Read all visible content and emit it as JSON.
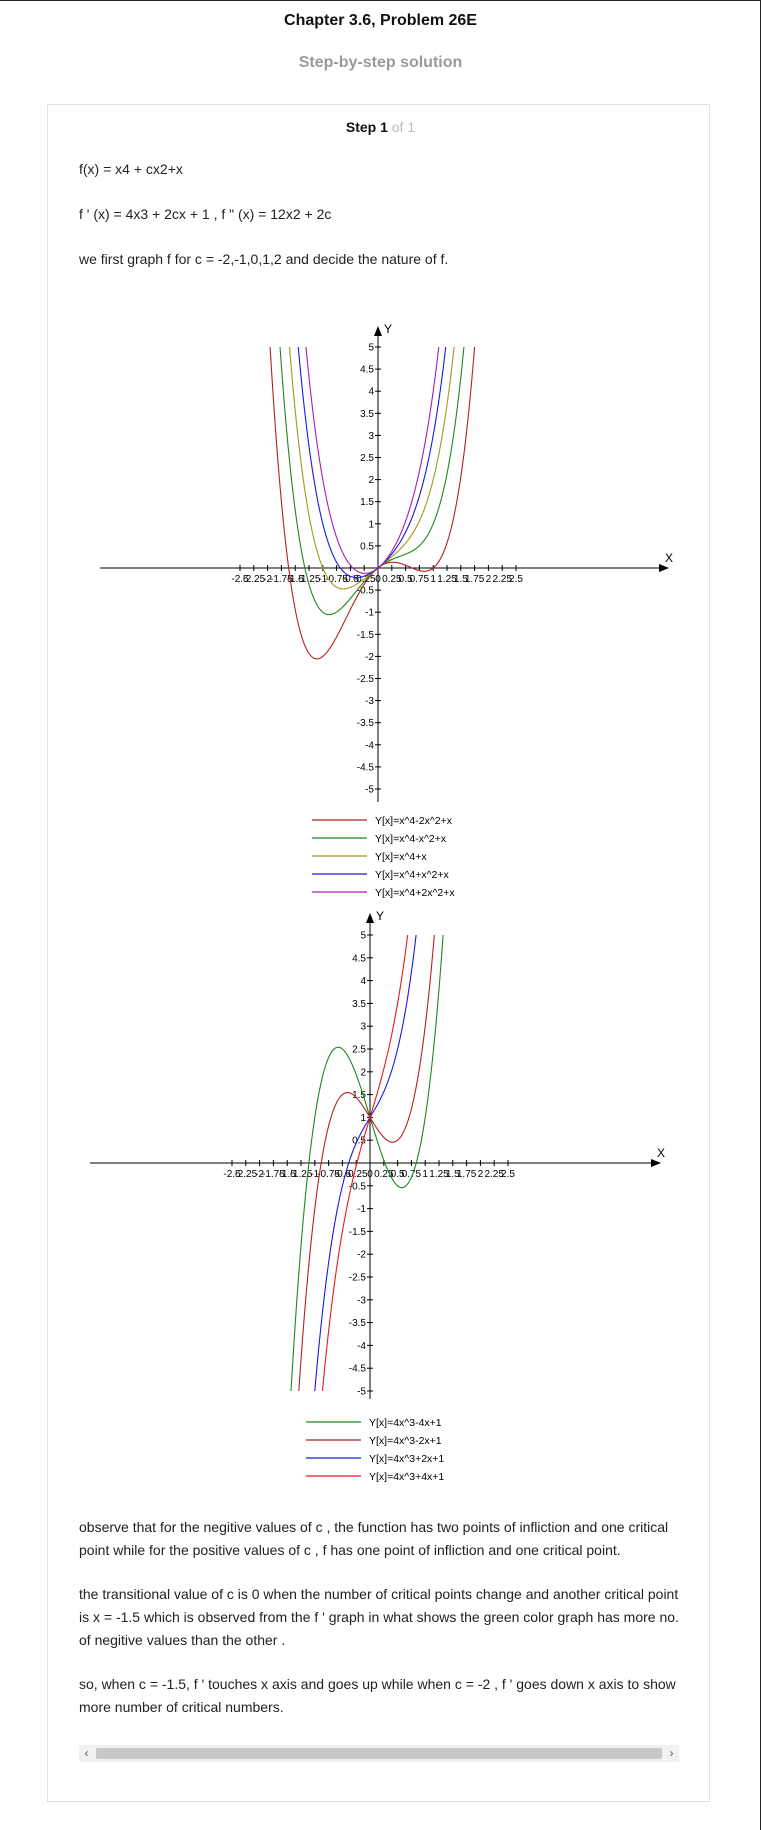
{
  "header": {
    "title": "Chapter 3.6, Problem 26E",
    "subtitle": "Step-by-step solution"
  },
  "step": {
    "label": "Step 1",
    "of_text": "of 1"
  },
  "content": {
    "line1": "f(x) = x4 + cx2+x",
    "line2": "f ' (x) = 4x3 + 2cx + 1 , f \" (x) = 12x2 + 2c",
    "line3": "we first graph f for c = -2,-1,0,1,2 and decide the nature of f.",
    "para1": "observe that for the negitive values of c , the function has two points of infliction and one critical point while for the positive values of c , f has one point of infliction and one critical point.",
    "para2": "the transitional value of c is 0 when the number of critical points change and another critical point is x = -1.5 which is observed from the f ' graph in what shows the green color graph has more no. of negitive values than the other .",
    "para3": "so, when c = -1.5, f ' touches x axis and goes up while when c = -2 , f ' goes down x axis to show more number of critical numbers."
  },
  "chart_data": [
    {
      "type": "line",
      "x_axis_label": "X",
      "y_axis_label": "Y",
      "xlim": [
        -2.5,
        2.5
      ],
      "ylim": [
        -5,
        5
      ],
      "x_ticks": [
        "-2.5",
        "-2.25",
        "-2",
        "-1.75",
        "-1.5",
        "-1.25",
        "-1",
        "-0.75",
        "-0.5",
        "-0.25",
        "0",
        "0.25",
        "0.5",
        "0.75",
        "1",
        "1.25",
        "1.5",
        "1.75",
        "2",
        "2.25",
        "2.5"
      ],
      "y_ticks": [
        "5",
        "4.5",
        "4",
        "3.5",
        "3",
        "2.5",
        "2",
        "1.5",
        "1",
        "0.5",
        "-0.5",
        "-1",
        "-1.5",
        "-2",
        "-2.5",
        "-3",
        "-3.5",
        "-4",
        "-4.5",
        "-5"
      ],
      "legend_position": "bottom",
      "series": [
        {
          "name": "Y[x]=x^4-2x^2+x",
          "color": "#b22222",
          "coefficients": {
            "x4": 1,
            "x3": 0,
            "x2": -2,
            "x1": 1,
            "x0": 0
          }
        },
        {
          "name": "Y[x]=x^4-x^2+x",
          "color": "#1a8a1a",
          "coefficients": {
            "x4": 1,
            "x3": 0,
            "x2": -1,
            "x1": 1,
            "x0": 0
          }
        },
        {
          "name": "Y[x]=x^4+x",
          "color": "#a09a1a",
          "coefficients": {
            "x4": 1,
            "x3": 0,
            "x2": 0,
            "x1": 1,
            "x0": 0
          }
        },
        {
          "name": "Y[x]=x^4+x^2+x",
          "color": "#1a1adc",
          "coefficients": {
            "x4": 1,
            "x3": 0,
            "x2": 1,
            "x1": 1,
            "x0": 0
          }
        },
        {
          "name": "Y[x]=x^4+2x^2+x",
          "color": "#b01ab0",
          "coefficients": {
            "x4": 1,
            "x3": 0,
            "x2": 2,
            "x1": 1,
            "x0": 0
          }
        }
      ]
    },
    {
      "type": "line",
      "x_axis_label": "X",
      "y_axis_label": "Y",
      "xlim": [
        -2.5,
        2.5
      ],
      "ylim": [
        -5,
        5
      ],
      "x_ticks": [
        "-2.5",
        "-2.25",
        "-2",
        "-1.75",
        "-1.5",
        "-1.25",
        "-1",
        "-0.75",
        "-0.5",
        "-0.25",
        "0",
        "0.25",
        "0.5",
        "0.75",
        "1",
        "1.25",
        "1.5",
        "1.75",
        "2",
        "2.25",
        "2.5"
      ],
      "y_ticks": [
        "5",
        "4.5",
        "4",
        "3.5",
        "3",
        "2.5",
        "2",
        "1.5",
        "1",
        "0.5",
        "-0.5",
        "-1",
        "-1.5",
        "-2",
        "-2.5",
        "-3",
        "-3.5",
        "-4",
        "-4.5",
        "-5"
      ],
      "legend_position": "bottom",
      "series": [
        {
          "name": "Y[x]=4x^3-4x+1",
          "color": "#1a8a1a",
          "coefficients": {
            "x4": 0,
            "x3": 4,
            "x2": 0,
            "x1": -4,
            "x0": 1
          }
        },
        {
          "name": "Y[x]=4x^3-2x+1",
          "color": "#b22222",
          "coefficients": {
            "x4": 0,
            "x3": 4,
            "x2": 0,
            "x1": -2,
            "x0": 1
          }
        },
        {
          "name": "Y[x]=4x^3+2x+1",
          "color": "#1a1adc",
          "coefficients": {
            "x4": 0,
            "x3": 4,
            "x2": 0,
            "x1": 2,
            "x0": 1
          }
        },
        {
          "name": "Y[x]=4x^3+4x+1",
          "color": "#e81a1a",
          "coefficients": {
            "x4": 0,
            "x3": 4,
            "x2": 0,
            "x1": 4,
            "x0": 1
          }
        }
      ]
    }
  ],
  "scrollbar": {
    "left_arrow": "‹",
    "right_arrow": "›"
  }
}
